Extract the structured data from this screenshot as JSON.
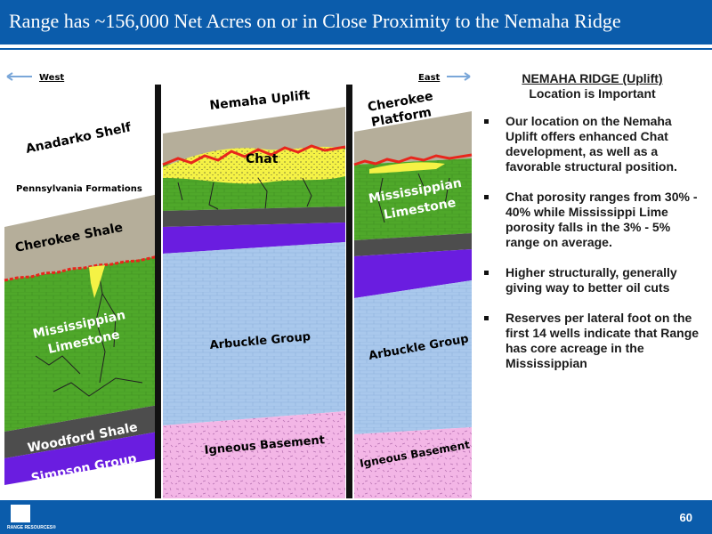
{
  "header": {
    "title": "Range has ~156,000 Net Acres on or in Close Proximity to the Nemaha Ridge"
  },
  "diagram": {
    "west": "West",
    "east": "East",
    "nemaha_uplift": "Nemaha Uplift",
    "cherokee_platform": [
      "Cherokee",
      "Platform"
    ],
    "anadarko_shelf": "Anadarko Shelf",
    "pennsylvania_formations": "Pennsylvania Formations",
    "cherokee_shale": "Cherokee Shale",
    "chat": "Chat",
    "mississippian_limestone_left": [
      "Mississippian",
      "Limestone"
    ],
    "mississippian_limestone_right": [
      "Mississippian",
      "Limestone"
    ],
    "woodford_shale": "Woodford Shale",
    "simpson_group": "Simpson Group",
    "arbuckle_group_middle": "Arbuckle Group",
    "arbuckle_group_right": "Arbuckle Group",
    "igneous_basement_middle": "Igneous Basement",
    "igneous_basement_right": "Igneous Basement"
  },
  "sidebar": {
    "heading": "NEMAHA RIDGE (Uplift)",
    "subheading": "Location is Important",
    "bullets": [
      "Our location on the Nemaha Uplift offers enhanced Chat development, as well as a favorable structural position.",
      "Chat porosity ranges from 30% - 40% while Mississippi Lime porosity falls in the 3% - 5% range on average.",
      "Higher structurally, generally giving way to better oil cuts",
      "Reserves per lateral foot on the first 14 wells indicate that Range has core acreage in the Mississippian"
    ]
  },
  "footer": {
    "logo_text": "RANGE RESOURCES®",
    "page_number": "60"
  }
}
